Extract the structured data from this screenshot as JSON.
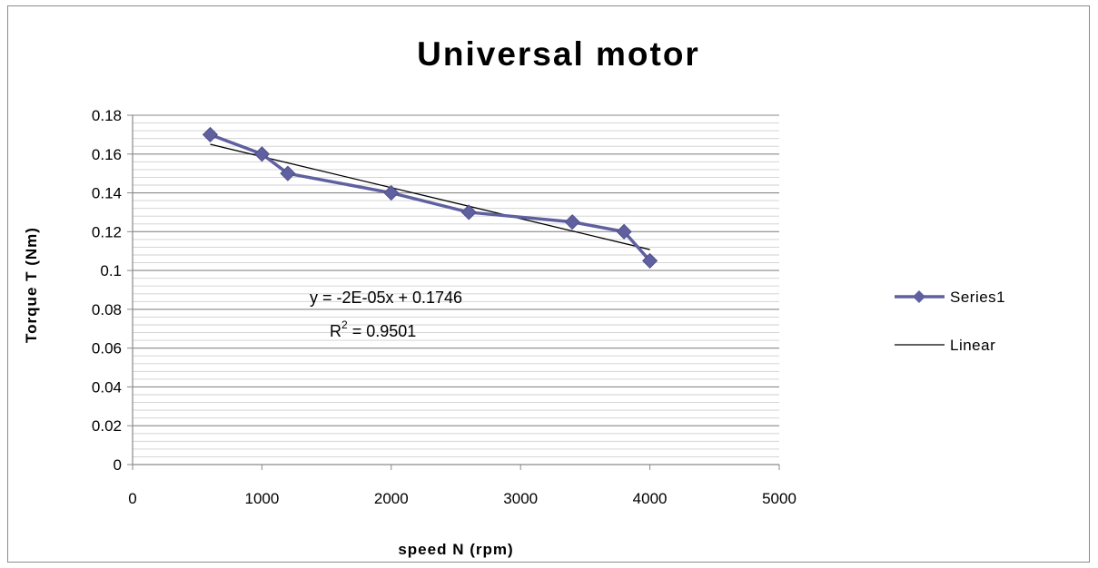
{
  "chart_data": {
    "type": "scatter",
    "title": "Universal motor",
    "xlabel": "speed  N (rpm)",
    "ylabel": "Torque T (Nm)",
    "xlim": [
      0,
      5000
    ],
    "ylim": [
      0,
      0.18
    ],
    "x_ticks": [
      "0",
      "1000",
      "2000",
      "3000",
      "4000",
      "5000"
    ],
    "y_ticks": [
      "0",
      "0.02",
      "0.04",
      "0.06",
      "0.08",
      "0.1",
      "0.12",
      "0.14",
      "0.16",
      "0.18"
    ],
    "grid": true,
    "legend_position": "right",
    "series": [
      {
        "name": "Series1",
        "color": "#6060a0",
        "marker": "diamond",
        "x": [
          600,
          1000,
          1200,
          2000,
          2600,
          3400,
          3800,
          4000
        ],
        "y": [
          0.17,
          0.16,
          0.15,
          0.14,
          0.13,
          0.125,
          0.12,
          0.105
        ]
      }
    ],
    "trendline": {
      "name": "Linear",
      "color": "#000000",
      "x_range": [
        600,
        4000
      ],
      "equation": "y = -2E-05x + 0.1746",
      "r2_prefix": "R",
      "r2_exp": "2",
      "r2_value": " = 0.9501"
    }
  }
}
